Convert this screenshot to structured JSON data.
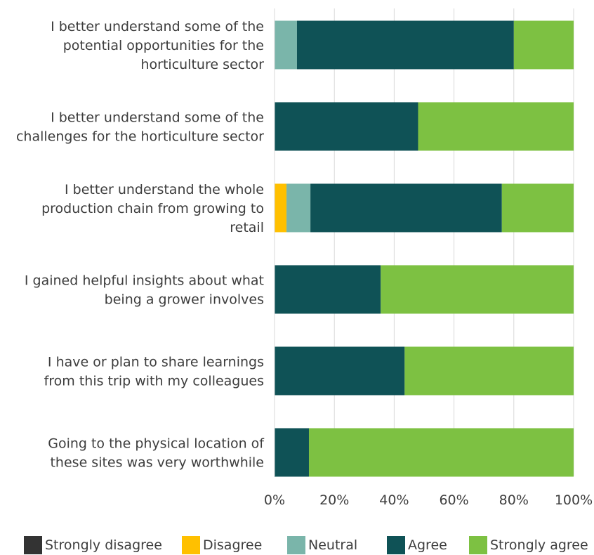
{
  "chart_data": {
    "type": "bar",
    "orientation": "horizontal",
    "stacked": true,
    "percent_stacked": true,
    "categories": [
      [
        "I better understand some of the",
        "potential opportunities for the",
        "horticulture sector"
      ],
      [
        "I better understand some of the",
        "challenges for the horticulture sector"
      ],
      [
        "I better understand  the whole",
        "production chain from growing to",
        "retail"
      ],
      [
        "I gained helpful insights about what",
        "being a grower involves"
      ],
      [
        "I have  or plan to share learnings",
        "from this trip with my colleagues"
      ],
      [
        "Going to the physical location of",
        "these sites was very worthwhile"
      ]
    ],
    "series": [
      {
        "name": "Strongly disagree",
        "color": "#333333",
        "values": [
          0,
          0,
          0,
          0,
          0,
          0
        ]
      },
      {
        "name": "Disagree",
        "color": "#FFC000",
        "values": [
          0,
          0,
          4,
          0,
          0,
          0
        ]
      },
      {
        "name": "Neutral",
        "color": "#7AB5AA",
        "values": [
          7.5,
          0,
          8,
          0,
          0,
          0
        ]
      },
      {
        "name": "Agree",
        "color": "#0F5256",
        "values": [
          72.5,
          48,
          64,
          35.5,
          43.5,
          11.5
        ]
      },
      {
        "name": "Strongly agree",
        "color": "#7DC142",
        "values": [
          20,
          52,
          24,
          64.5,
          56.5,
          88.5
        ]
      }
    ],
    "x_ticks": [
      "0%",
      "20%",
      "40%",
      "60%",
      "80%",
      "100%"
    ],
    "xlim": [
      0,
      100
    ],
    "grid": true,
    "legend_position": "bottom",
    "title": "",
    "xlabel": "",
    "ylabel": ""
  }
}
